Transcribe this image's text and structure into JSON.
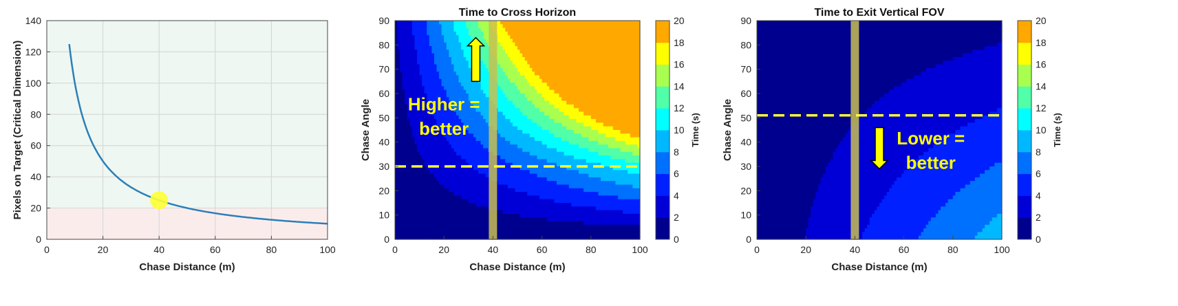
{
  "chart_data": [
    {
      "type": "line",
      "title": "",
      "xlabel": "Chase Distance (m)",
      "ylabel": "Pixels on Target (Critical Dimension)",
      "xlim": [
        0,
        100
      ],
      "ylim": [
        0,
        140
      ],
      "xticks": [
        "0",
        "20",
        "40",
        "60",
        "80",
        "100"
      ],
      "yticks": [
        "0",
        "20",
        "40",
        "60",
        "80",
        "100",
        "120",
        "140"
      ],
      "grid": true,
      "series": [
        {
          "color": "#2a7fb8",
          "x": [
            8,
            9,
            10,
            11,
            12,
            14,
            16,
            18,
            20,
            25,
            30,
            35,
            40,
            45,
            50,
            60,
            70,
            80,
            90,
            100
          ],
          "values": [
            125,
            111,
            100,
            91,
            83,
            71,
            62.5,
            55.6,
            50,
            40,
            33.3,
            28.6,
            25,
            22.2,
            20,
            16.7,
            14.3,
            12.5,
            11.1,
            10
          ]
        }
      ],
      "bands": [
        {
          "y0": 20,
          "y1": 140,
          "color": "#eef7f1"
        },
        {
          "y0": 0,
          "y1": 20,
          "color": "#fbecec"
        }
      ],
      "marker": {
        "x": 40,
        "y": 25,
        "color": "#ffff33"
      }
    },
    {
      "type": "heatmap",
      "title": "Time to Cross Horizon",
      "xlabel": "Chase Distance (m)",
      "ylabel": "Chase Angle",
      "xlim": [
        0,
        100
      ],
      "ylim": [
        0,
        90
      ],
      "xticks": [
        "0",
        "20",
        "40",
        "60",
        "80",
        "100"
      ],
      "yticks": [
        "0",
        "10",
        "20",
        "30",
        "40",
        "50",
        "60",
        "70",
        "80",
        "90"
      ],
      "colorbar": {
        "label": "Time (s)",
        "min": 0,
        "max": 20,
        "step": 2,
        "ticks": [
          "0",
          "2",
          "4",
          "6",
          "8",
          "10",
          "12",
          "14",
          "16",
          "18",
          "20"
        ]
      },
      "vertical_band": {
        "x": 40,
        "color": "#c8c050"
      },
      "dashed_line_y": 30,
      "annotation": {
        "text_line1": "Higher =",
        "text_line2": "better",
        "arrow": "up"
      }
    },
    {
      "type": "heatmap",
      "title": "Time to Exit Vertical FOV",
      "xlabel": "Chase Distance (m)",
      "ylabel": "Chase Angle",
      "xlim": [
        0,
        100
      ],
      "ylim": [
        0,
        90
      ],
      "xticks": [
        "0",
        "20",
        "40",
        "60",
        "80",
        "100"
      ],
      "yticks": [
        "0",
        "10",
        "20",
        "30",
        "40",
        "50",
        "60",
        "70",
        "80",
        "90"
      ],
      "colorbar": {
        "label": "Time (s)",
        "min": 0,
        "max": 20,
        "step": 2,
        "ticks": [
          "0",
          "2",
          "4",
          "6",
          "8",
          "10",
          "12",
          "14",
          "16",
          "18",
          "20"
        ]
      },
      "vertical_band": {
        "x": 40,
        "color": "#c8c050"
      },
      "dashed_line_y": 51,
      "annotation": {
        "text_line1": "Lower =",
        "text_line2": "better",
        "arrow": "down"
      }
    }
  ]
}
